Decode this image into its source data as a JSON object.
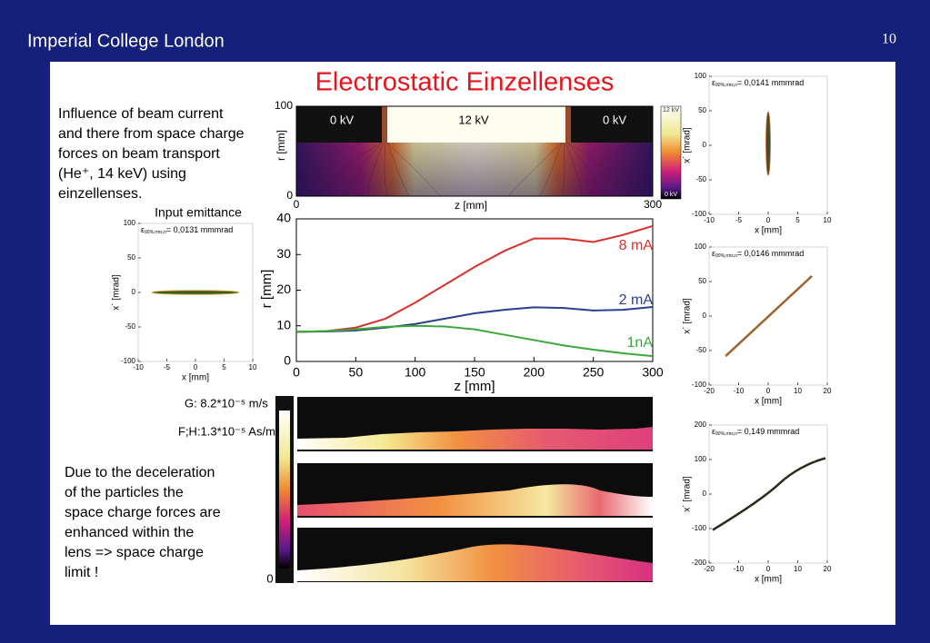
{
  "header": {
    "institution": "Imperial College London",
    "page_number": "10"
  },
  "title": "Electrostatic Einzellenses",
  "intro_lines": [
    "Influence of beam current",
    "and there from space charge",
    "forces on beam transport",
    "(He⁺, 14 keV) using",
    "einzellenses."
  ],
  "conclusion_lines": [
    "Due to the deceleration",
    "of the particles the",
    "space charge forces are",
    "enhanced within the",
    "lens => space charge",
    "limit !"
  ],
  "field_map": {
    "xlabel": "z [mm]",
    "ylabel": "r [mm]",
    "xticks": [
      0,
      300
    ],
    "yticks": [
      0,
      100
    ],
    "electrodes": [
      "0 kV",
      "12 kV",
      "0 kV"
    ],
    "colorbar_labels": [
      "12 kV",
      "0 kV"
    ]
  },
  "chart_data": {
    "type": "line",
    "xlabel": "z [mm]",
    "ylabel": "r [mm]",
    "x": [
      0,
      25,
      50,
      75,
      100,
      125,
      150,
      175,
      200,
      225,
      250,
      275,
      300
    ],
    "series": [
      {
        "name": "8 mA",
        "color": "#d9302c",
        "values": [
          8.3,
          8.5,
          9.5,
          12,
          16.5,
          21.5,
          26.5,
          31,
          34.5,
          34.5,
          33.5,
          35.5,
          38
        ]
      },
      {
        "name": "2 mA",
        "color": "#2a3f8f",
        "values": [
          8.3,
          8.4,
          8.7,
          9.5,
          10.5,
          12,
          13.5,
          14.5,
          15.2,
          15,
          14.3,
          14.5,
          15.3
        ]
      },
      {
        "name": "1nA",
        "color": "#3aa83a",
        "values": [
          8.3,
          8.5,
          9,
          9.7,
          10,
          9.8,
          9,
          7.5,
          6,
          4.5,
          3.3,
          2.3,
          1.5
        ]
      }
    ],
    "xlim": [
      0,
      300
    ],
    "xticks": [
      0,
      50,
      100,
      150,
      200,
      250,
      300
    ],
    "ylim": [
      0,
      40
    ],
    "yticks": [
      0,
      10,
      20,
      30,
      40
    ]
  },
  "emittance_plots": [
    {
      "title": "Input emittance",
      "symbol": "ε",
      "subscript": "90%,rms,n",
      "value_text": "= 0,0131 mmmrad",
      "xlabel": "x [mm]",
      "ylabel": "x´ [mrad]",
      "xlim": [
        -10,
        10
      ],
      "xticks": [
        -10,
        -5,
        0,
        5,
        10
      ],
      "ylim": [
        -100,
        100
      ],
      "yticks": [
        -100,
        -50,
        0,
        50,
        100
      ]
    },
    {
      "symbol": "ε",
      "subscript": "90%,rms,n",
      "value_text": "= 0,0141 mmmrad",
      "xlabel": "x [mm]",
      "ylabel": "x´ [mrad]",
      "xlim": [
        -10,
        10
      ],
      "xticks": [
        -10,
        -5,
        0,
        5,
        10
      ],
      "ylim": [
        -100,
        100
      ],
      "yticks": [
        -100,
        -50,
        0,
        50,
        100
      ]
    },
    {
      "symbol": "ε",
      "subscript": "90%,rms,n",
      "value_text": "= 0,0146 mmmrad",
      "xlabel": "x [mm]",
      "ylabel": "x´ [mrad]",
      "xlim": [
        -20,
        20
      ],
      "xticks": [
        -20,
        -10,
        0,
        10,
        20
      ],
      "ylim": [
        -100,
        100
      ],
      "yticks": [
        -100,
        -50,
        0,
        50,
        100
      ]
    },
    {
      "symbol": "ε",
      "subscript": "90%,rms,n",
      "value_text": "= 0,149 mmmrad",
      "xlabel": "x [mm]",
      "ylabel": "x´ [mrad]",
      "xlim": [
        -20,
        20
      ],
      "xticks": [
        -20,
        -10,
        0,
        10,
        20
      ],
      "ylim": [
        -200,
        200
      ],
      "yticks": [
        -200,
        -100,
        0,
        100,
        200
      ]
    }
  ],
  "density_maps": {
    "legend": [
      "G: 8.2*10⁻⁵ m/s",
      "F;H:1.3*10⁻⁵ As/m³"
    ],
    "colorbar_min": "0"
  }
}
